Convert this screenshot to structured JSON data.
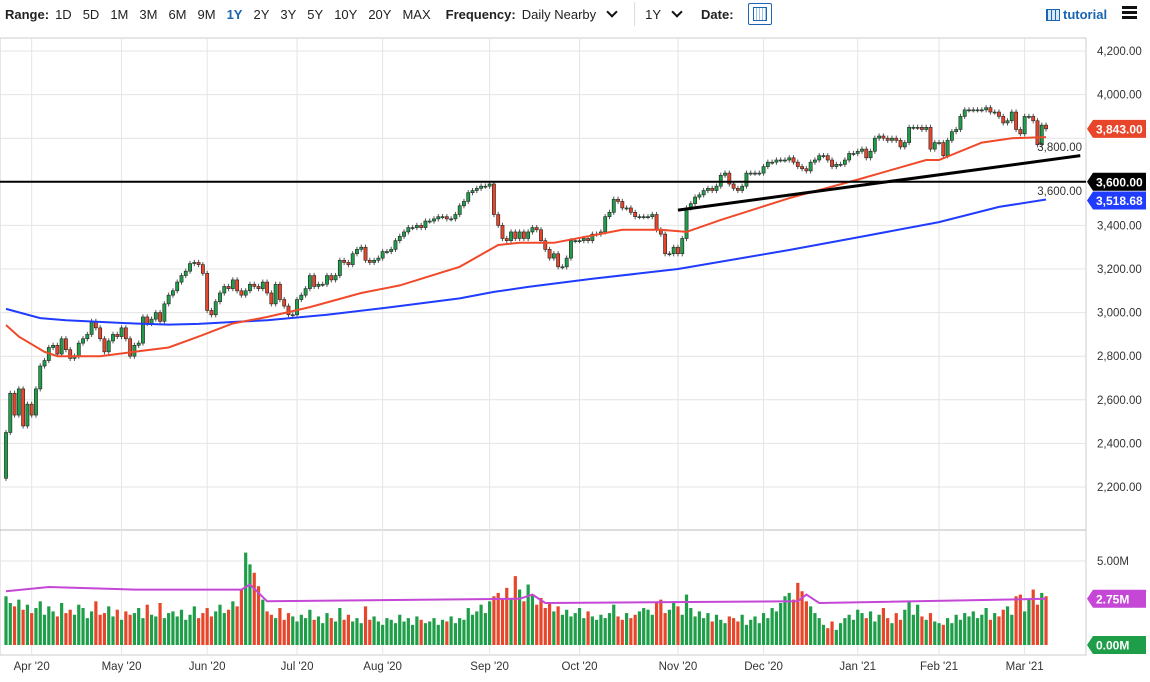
{
  "toolbar": {
    "range_label": "Range:",
    "ranges": [
      "1D",
      "5D",
      "1M",
      "3M",
      "6M",
      "9M",
      "1Y",
      "2Y",
      "3Y",
      "5Y",
      "10Y",
      "20Y",
      "MAX"
    ],
    "active_range": "1Y",
    "frequency_label": "Frequency:",
    "frequency_value": "Daily Nearby",
    "period_value": "1Y",
    "date_label": "Date:",
    "tutorial_label": "tutorial",
    "icons": {
      "calendar": "calendar-icon",
      "tutorial": "film-icon",
      "menu": "hamburger-menu-icon"
    }
  },
  "colors": {
    "up": "#1e9e48",
    "down": "#e8462b",
    "ma_red": "#f04a2a",
    "ma_blue": "#1f3cff",
    "volume_avg": "#c447d6",
    "support": "#000000",
    "accent": "#1a64b0"
  },
  "chart_data": {
    "type": "candlestick",
    "price_axis": {
      "min": 2200,
      "max": 4200,
      "ticks": [
        "4,200.00",
        "4,000.00",
        "3,800.00",
        "3,600.00",
        "3,400.00",
        "3,200.00",
        "3,000.00",
        "2,800.00",
        "2,600.00",
        "2,400.00",
        "2,200.00"
      ],
      "tick_values": [
        4200,
        4000,
        3800,
        3600,
        3400,
        3200,
        3000,
        2800,
        2600,
        2400,
        2200
      ]
    },
    "volume_axis": {
      "min": 0,
      "max": 5.7,
      "ticks": [
        "5.00M"
      ],
      "tick_values": [
        5
      ]
    },
    "x_labels": [
      {
        "label": "Apr '20",
        "at": 6
      },
      {
        "label": "May '20",
        "at": 27
      },
      {
        "label": "Jun '20",
        "at": 47
      },
      {
        "label": "Jul '20",
        "at": 68
      },
      {
        "label": "Aug '20",
        "at": 88
      },
      {
        "label": "Sep '20",
        "at": 113
      },
      {
        "label": "Oct '20",
        "at": 134
      },
      {
        "label": "Nov '20",
        "at": 157
      },
      {
        "label": "Dec '20",
        "at": 177
      },
      {
        "label": "Jan '21",
        "at": 199
      },
      {
        "label": "Feb '21",
        "at": 218
      },
      {
        "label": "Mar '21",
        "at": 238
      }
    ],
    "grid": true,
    "first_open": 2240,
    "close": [
      2450,
      2630,
      2530,
      2650,
      2480,
      2580,
      2530,
      2650,
      2755,
      2780,
      2840,
      2850,
      2810,
      2880,
      2830,
      2790,
      2800,
      2860,
      2880,
      2900,
      2960,
      2930,
      2880,
      2820,
      2870,
      2900,
      2890,
      2930,
      2880,
      2800,
      2850,
      2860,
      2980,
      2950,
      2970,
      3000,
      2960,
      3040,
      3080,
      3100,
      3140,
      3170,
      3190,
      3225,
      3230,
      3220,
      3180,
      3010,
      2990,
      3050,
      3090,
      3120,
      3110,
      3150,
      3100,
      3080,
      3100,
      3130,
      3120,
      3110,
      3140,
      3090,
      3040,
      3130,
      3060,
      3030,
      2990,
      2990,
      3060,
      3080,
      3110,
      3170,
      3120,
      3130,
      3130,
      3170,
      3150,
      3170,
      3240,
      3230,
      3220,
      3270,
      3290,
      3300,
      3240,
      3230,
      3240,
      3250,
      3280,
      3280,
      3290,
      3330,
      3350,
      3370,
      3390,
      3390,
      3400,
      3390,
      3420,
      3420,
      3430,
      3440,
      3440,
      3430,
      3430,
      3450,
      3490,
      3510,
      3550,
      3560,
      3570,
      3580,
      3580,
      3590,
      3450,
      3400,
      3340,
      3330,
      3370,
      3340,
      3370,
      3340,
      3370,
      3390,
      3380,
      3330,
      3290,
      3250,
      3270,
      3210,
      3210,
      3250,
      3330,
      3330,
      3330,
      3340,
      3330,
      3360,
      3360,
      3370,
      3440,
      3460,
      3520,
      3510,
      3480,
      3480,
      3460,
      3440,
      3440,
      3440,
      3440,
      3450,
      3380,
      3360,
      3270,
      3270,
      3300,
      3270,
      3340,
      3480,
      3500,
      3530,
      3540,
      3560,
      3570,
      3560,
      3580,
      3630,
      3640,
      3590,
      3570,
      3560,
      3580,
      3640,
      3640,
      3640,
      3640,
      3670,
      3690,
      3690,
      3700,
      3700,
      3700,
      3710,
      3690,
      3670,
      3660,
      3650,
      3690,
      3700,
      3720,
      3720,
      3700,
      3670,
      3680,
      3680,
      3700,
      3730,
      3730,
      3740,
      3750,
      3710,
      3740,
      3800,
      3810,
      3800,
      3790,
      3800,
      3790,
      3760,
      3780,
      3850,
      3850,
      3850,
      3840,
      3850,
      3750,
      3780,
      3780,
      3720,
      3790,
      3830,
      3840,
      3900,
      3930,
      3930,
      3930,
      3930,
      3930,
      3940,
      3920,
      3920,
      3900,
      3870,
      3880,
      3920,
      3840,
      3820,
      3900,
      3900,
      3880,
      3770,
      3860,
      3843
    ],
    "volume": [
      2.9,
      2.5,
      2.3,
      2.7,
      2.1,
      2.4,
      1.9,
      2.2,
      2.6,
      1.8,
      2.3,
      2.0,
      1.7,
      2.5,
      1.9,
      2.1,
      1.8,
      2.4,
      2.2,
      1.6,
      2.0,
      2.6,
      1.8,
      1.9,
      2.3,
      1.7,
      2.1,
      1.5,
      2.0,
      1.8,
      1.9,
      2.2,
      1.6,
      2.4,
      1.8,
      1.7,
      2.5,
      1.6,
      1.9,
      2.0,
      1.7,
      2.1,
      1.5,
      1.8,
      2.3,
      1.6,
      1.9,
      2.2,
      1.7,
      2.0,
      2.4,
      1.9,
      2.1,
      2.6,
      2.3,
      3.3,
      5.5,
      4.8,
      4.3,
      3.5,
      2.7,
      2.0,
      1.8,
      1.6,
      2.2,
      1.5,
      1.9,
      1.7,
      1.4,
      1.8,
      1.6,
      2.1,
      1.5,
      1.7,
      1.3,
      1.9,
      1.6,
      1.4,
      2.2,
      1.5,
      1.8,
      1.4,
      1.6,
      1.3,
      2.3,
      1.5,
      1.7,
      1.4,
      1.2,
      1.6,
      1.5,
      1.3,
      1.8,
      1.4,
      1.6,
      1.2,
      1.7,
      1.5,
      1.3,
      1.4,
      1.6,
      1.2,
      1.5,
      1.4,
      1.7,
      1.3,
      1.6,
      1.5,
      2.2,
      1.8,
      2.0,
      2.4,
      1.9,
      2.6,
      2.9,
      3.1,
      2.7,
      3.4,
      2.8,
      4.1,
      3.3,
      2.6,
      3.6,
      3.0,
      2.4,
      2.8,
      2.2,
      2.5,
      2.0,
      2.3,
      1.8,
      2.1,
      1.7,
      1.9,
      2.2,
      1.6,
      2.0,
      1.7,
      1.5,
      1.8,
      1.6,
      1.9,
      2.4,
      1.7,
      1.5,
      1.9,
      1.6,
      1.8,
      2.0,
      2.2,
      2.1,
      1.8,
      2.5,
      2.7,
      1.9,
      2.1,
      2.6,
      2.3,
      1.8,
      3.0,
      2.2,
      1.7,
      2.0,
      1.6,
      1.9,
      1.4,
      1.8,
      1.5,
      1.3,
      1.7,
      1.6,
      1.4,
      1.8,
      1.2,
      1.5,
      1.7,
      1.3,
      1.9,
      1.6,
      2.2,
      2.0,
      2.5,
      2.9,
      3.1,
      2.7,
      3.7,
      3.2,
      2.6,
      2.3,
      1.9,
      1.6,
      1.2,
      1.0,
      1.4,
      0.9,
      1.3,
      1.6,
      1.8,
      1.5,
      2.1,
      1.9,
      1.6,
      2.0,
      1.4,
      1.8,
      2.2,
      1.6,
      1.3,
      1.9,
      1.5,
      2.1,
      2.6,
      1.8,
      2.4,
      1.7,
      1.5,
      1.9,
      1.4,
      1.3,
      1.2,
      1.6,
      1.3,
      1.8,
      1.5,
      1.9,
      1.7,
      2.0,
      1.6,
      1.8,
      2.2,
      1.5,
      1.9,
      1.7,
      2.1,
      2.3,
      1.8,
      2.9,
      3.0,
      2.0,
      2.7,
      3.3,
      2.4,
      3.1,
      2.9
    ],
    "ma_red": [
      [
        0,
        2943
      ],
      [
        3,
        2890
      ],
      [
        9,
        2820
      ],
      [
        12,
        2800
      ],
      [
        22,
        2800
      ],
      [
        30,
        2820
      ],
      [
        38,
        2840
      ],
      [
        45,
        2890
      ],
      [
        53,
        2950
      ],
      [
        61,
        2980
      ],
      [
        71,
        3025
      ],
      [
        83,
        3090
      ],
      [
        92,
        3125
      ],
      [
        106,
        3210
      ],
      [
        115,
        3310
      ],
      [
        120,
        3320
      ],
      [
        128,
        3320
      ],
      [
        144,
        3380
      ],
      [
        153,
        3380
      ],
      [
        159,
        3370
      ],
      [
        167,
        3425
      ],
      [
        183,
        3525
      ],
      [
        199,
        3610
      ],
      [
        215,
        3700
      ],
      [
        218,
        3700
      ],
      [
        228,
        3780
      ],
      [
        235,
        3800
      ],
      [
        243,
        3805
      ]
    ],
    "ma_blue": [
      [
        0,
        3017
      ],
      [
        8,
        2975
      ],
      [
        14,
        2965
      ],
      [
        30,
        2950
      ],
      [
        38,
        2945
      ],
      [
        45,
        2948
      ],
      [
        53,
        2957
      ],
      [
        61,
        2965
      ],
      [
        75,
        2990
      ],
      [
        90,
        3025
      ],
      [
        106,
        3065
      ],
      [
        114,
        3095
      ],
      [
        122,
        3118
      ],
      [
        137,
        3155
      ],
      [
        157,
        3200
      ],
      [
        183,
        3287
      ],
      [
        199,
        3345
      ],
      [
        218,
        3415
      ],
      [
        232,
        3485
      ],
      [
        243,
        3518.68
      ]
    ],
    "volume_avg": [
      [
        0,
        3.2
      ],
      [
        10,
        3.45
      ],
      [
        30,
        3.3
      ],
      [
        55,
        3.3
      ],
      [
        57,
        3.6
      ],
      [
        61,
        2.6
      ],
      [
        120,
        2.75
      ],
      [
        123,
        3.0
      ],
      [
        126,
        2.5
      ],
      [
        185,
        2.6
      ],
      [
        187,
        3.0
      ],
      [
        190,
        2.5
      ],
      [
        243,
        2.75
      ]
    ],
    "support_level": 3600,
    "trendline": [
      [
        157,
        3470
      ],
      [
        251,
        3720
      ]
    ],
    "tags": {
      "last_price": "3,843.00",
      "support": "3,600.00",
      "ma_blue_value": "3,518.68",
      "volume_avg": "2.75M",
      "volume_zero": "0.00M"
    },
    "tag_values": {
      "last_price": 3843,
      "support": 3600,
      "ma_blue_value": 3518.68,
      "volume_avg": 2.75,
      "volume_zero": 0
    }
  }
}
